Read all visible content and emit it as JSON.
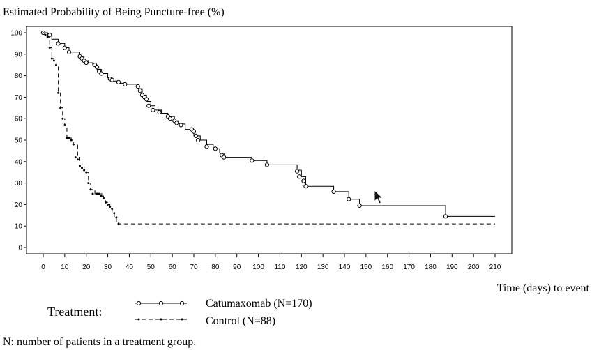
{
  "chart_data": {
    "type": "line",
    "step": true,
    "title": "Estimated Probability of Being Puncture-free (%)",
    "xlabel": "Time (days) to event",
    "ylabel": "",
    "xlim": [
      0,
      210
    ],
    "ylim": [
      0,
      100
    ],
    "xticks": [
      0,
      10,
      20,
      30,
      40,
      50,
      60,
      70,
      80,
      90,
      100,
      110,
      120,
      130,
      140,
      150,
      160,
      170,
      180,
      190,
      200,
      210
    ],
    "yticks": [
      0,
      10,
      20,
      30,
      40,
      50,
      60,
      70,
      80,
      90,
      100
    ],
    "grid": false,
    "legend": {
      "position": "bottom",
      "title": "Treatment:",
      "entries": [
        "Catumaxomab (N=170)",
        "Control (N=88)"
      ]
    },
    "footnote": "N: number of patients in a treatment group.",
    "series": [
      {
        "name": "Catumaxomab (N=170)",
        "line_style": "solid",
        "marker": "open-circle",
        "color": "#000000",
        "x": [
          0,
          2,
          4,
          7,
          10,
          12,
          17,
          19,
          21,
          23,
          25,
          27,
          30,
          32,
          35,
          38,
          44,
          46,
          48,
          50,
          52,
          55,
          58,
          61,
          63,
          66,
          70,
          73,
          76,
          79,
          82,
          84,
          97,
          104,
          118,
          120,
          122,
          135,
          142,
          147,
          187,
          210
        ],
        "y": [
          100,
          99,
          97,
          95,
          93,
          91,
          89,
          87,
          86,
          85,
          83,
          81,
          79,
          77.5,
          76.5,
          76,
          74,
          71,
          68,
          66,
          64,
          62.5,
          61,
          59,
          57.5,
          55,
          52,
          50,
          48,
          46,
          44,
          42,
          40.5,
          38.5,
          36,
          33,
          28.5,
          26,
          22.5,
          19.5,
          14.5,
          14.5
        ],
        "censored_x": [
          0,
          3,
          7,
          10,
          12,
          17,
          18,
          19,
          20,
          24,
          25,
          26,
          27,
          31,
          32,
          35,
          38,
          44,
          45,
          46,
          47,
          48,
          49,
          51,
          54,
          58,
          59,
          61,
          62,
          64,
          69,
          70,
          71,
          72,
          76,
          80,
          83,
          84,
          97,
          104,
          118,
          119,
          121,
          122,
          135,
          142,
          147,
          187
        ],
        "censored_y": [
          100,
          99,
          95,
          93,
          91,
          89,
          88,
          87,
          86,
          85,
          84,
          82,
          81,
          78.5,
          78,
          77,
          76,
          75,
          73,
          71,
          70,
          69,
          66,
          64,
          63,
          61,
          60,
          59,
          58,
          57,
          55,
          54,
          52,
          50,
          47,
          46,
          43,
          42,
          40.5,
          38.5,
          35.5,
          33,
          31,
          28.5,
          26,
          22.5,
          19.5,
          14.5
        ]
      },
      {
        "name": "Control (N=88)",
        "line_style": "dashed",
        "marker": "dot",
        "color": "#000000",
        "x": [
          0,
          2,
          3,
          4,
          5,
          6,
          7,
          8,
          9,
          10,
          11,
          12,
          13,
          14,
          16,
          17,
          18,
          19,
          20,
          21,
          22,
          24,
          27,
          28,
          29,
          30,
          31,
          32,
          33,
          34,
          35,
          210
        ],
        "y": [
          100,
          98,
          93,
          88,
          87,
          85,
          72,
          65,
          60,
          57,
          51,
          51,
          50,
          48,
          42,
          40,
          38,
          36,
          35,
          30,
          27,
          25,
          25,
          23,
          21,
          20,
          18,
          16,
          14,
          12,
          11,
          11
        ],
        "censored_x": [
          1,
          2,
          3,
          4,
          5,
          6,
          7,
          8,
          9,
          10,
          11,
          12,
          13,
          14,
          15,
          16,
          17,
          18,
          19,
          20,
          21,
          22,
          23,
          25,
          26,
          27,
          28,
          29,
          30,
          31,
          32,
          33,
          34,
          35
        ],
        "censored_y": [
          99,
          98,
          93,
          88,
          87,
          85,
          72,
          65,
          60,
          57,
          51,
          51,
          50,
          48,
          42,
          41,
          38,
          37,
          36,
          35,
          30,
          27,
          25,
          25,
          25,
          24,
          23,
          21,
          20,
          19,
          18,
          16,
          14,
          11
        ]
      }
    ]
  }
}
